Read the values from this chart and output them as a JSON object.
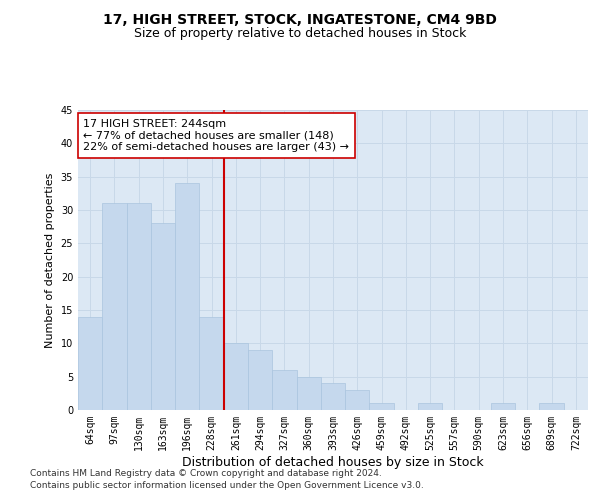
{
  "title1": "17, HIGH STREET, STOCK, INGATESTONE, CM4 9BD",
  "title2": "Size of property relative to detached houses in Stock",
  "xlabel": "Distribution of detached houses by size in Stock",
  "ylabel": "Number of detached properties",
  "categories": [
    "64sqm",
    "97sqm",
    "130sqm",
    "163sqm",
    "196sqm",
    "228sqm",
    "261sqm",
    "294sqm",
    "327sqm",
    "360sqm",
    "393sqm",
    "426sqm",
    "459sqm",
    "492sqm",
    "525sqm",
    "557sqm",
    "590sqm",
    "623sqm",
    "656sqm",
    "689sqm",
    "722sqm"
  ],
  "values": [
    14,
    31,
    31,
    28,
    34,
    14,
    10,
    9,
    6,
    5,
    4,
    3,
    1,
    0,
    1,
    0,
    0,
    1,
    0,
    1,
    0
  ],
  "bar_color": "#c5d8ed",
  "bar_edgecolor": "#aac4de",
  "vline_index": 5.5,
  "vline_color": "#cc0000",
  "annotation_text": "17 HIGH STREET: 244sqm\n← 77% of detached houses are smaller (148)\n22% of semi-detached houses are larger (43) →",
  "annotation_box_edgecolor": "#cc0000",
  "annotation_box_facecolor": "#ffffff",
  "ylim": [
    0,
    45
  ],
  "yticks": [
    0,
    5,
    10,
    15,
    20,
    25,
    30,
    35,
    40,
    45
  ],
  "grid_color": "#c8d8e8",
  "background_color": "#dce8f4",
  "footer1": "Contains HM Land Registry data © Crown copyright and database right 2024.",
  "footer2": "Contains public sector information licensed under the Open Government Licence v3.0.",
  "title_fontsize": 10,
  "subtitle_fontsize": 9,
  "xlabel_fontsize": 9,
  "ylabel_fontsize": 8,
  "tick_fontsize": 7,
  "annotation_fontsize": 8,
  "footer_fontsize": 6.5
}
